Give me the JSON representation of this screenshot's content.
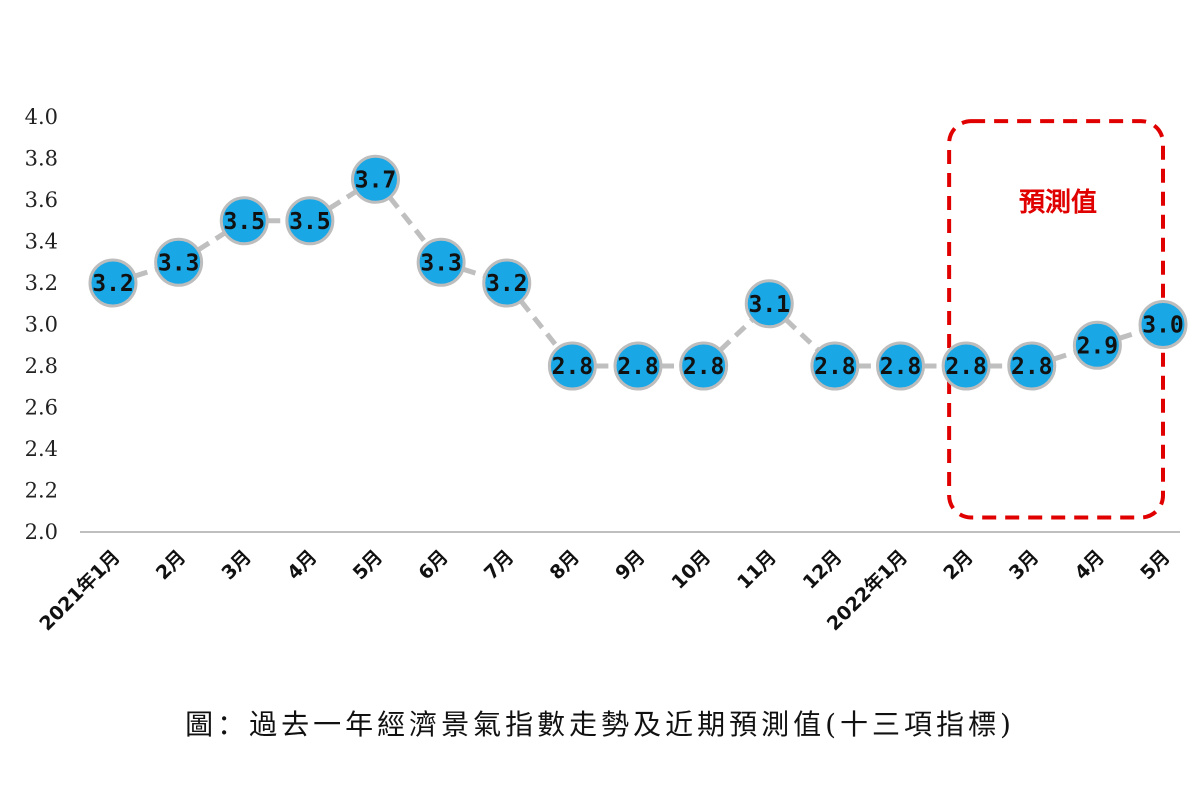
{
  "caption": "圖：過去一年經濟景氣指數走勢及近期預測值(十三項指標)",
  "colors": {
    "marker_fill": "#1aa7e6",
    "marker_stroke": "#bdbdbd",
    "line": "#bfbfbf",
    "forecast": "#e00000",
    "axis": "#bfbfbf"
  },
  "chart_data": {
    "type": "line",
    "title": "",
    "xlabel": "",
    "ylabel": "",
    "ylim": [
      2.0,
      4.0
    ],
    "yticks": [
      "2.0",
      "2.2",
      "2.4",
      "2.6",
      "2.8",
      "3.0",
      "3.2",
      "3.4",
      "3.6",
      "3.8",
      "4.0"
    ],
    "grid": false,
    "categories": [
      "2021年1月",
      "2月",
      "3月",
      "4月",
      "5月",
      "6月",
      "7月",
      "8月",
      "9月",
      "10月",
      "11月",
      "12月",
      "2022年1月",
      "2月",
      "3月",
      "4月",
      "5月"
    ],
    "values": [
      3.2,
      3.3,
      3.5,
      3.5,
      3.7,
      3.3,
      3.2,
      2.8,
      2.8,
      2.8,
      3.1,
      2.8,
      2.8,
      2.8,
      2.8,
      2.9,
      3.0
    ],
    "data_labels": [
      "3.2",
      "3.3",
      "3.5",
      "3.5",
      "3.7",
      "3.3",
      "3.2",
      "2.8",
      "2.8",
      "2.8",
      "3.1",
      "2.8",
      "2.8",
      "2.8",
      "2.8",
      "2.9",
      "3.0"
    ],
    "annotations": [
      {
        "text": "預測值",
        "from_category": "2月",
        "to_category": "5月",
        "style": "dashed-box"
      }
    ]
  }
}
